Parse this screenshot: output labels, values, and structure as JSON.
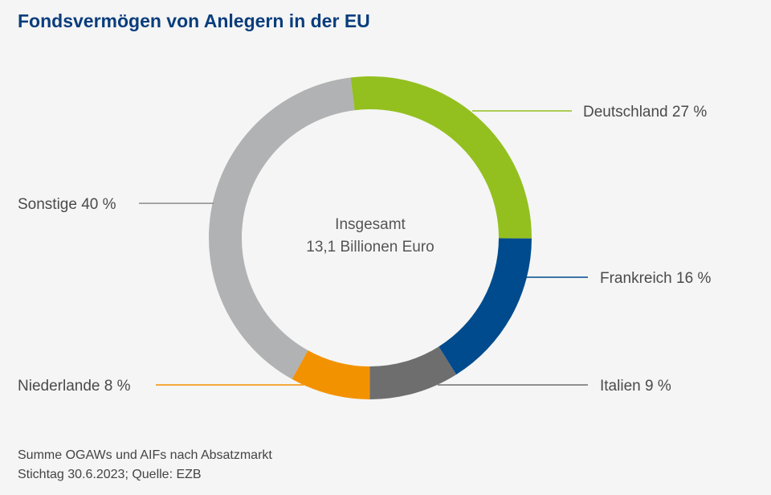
{
  "chart_data": {
    "type": "pie",
    "variant": "donut",
    "title": "Fondsvermögen von Anlegern in der EU",
    "center_label": [
      "Insgesamt",
      "13,1 Billionen Euro"
    ],
    "unit": "%",
    "slices": [
      {
        "name": "Deutschland",
        "value": 27,
        "label": "Deutschland 27 %",
        "color": "#93c01f"
      },
      {
        "name": "Frankreich",
        "value": 16,
        "label": "Frankreich 16 %",
        "color": "#004b8d"
      },
      {
        "name": "Italien",
        "value": 9,
        "label": "Italien 9 %",
        "color": "#6e6e6e"
      },
      {
        "name": "Niederlande",
        "value": 8,
        "label": "Niederlande 8 %",
        "color": "#f39200"
      },
      {
        "name": "Sonstige",
        "value": 40,
        "label": "Sonstige 40 %",
        "color": "#b1b2b4"
      }
    ],
    "notes": [
      "Summe OGAWs und AIFs nach Absatzmarkt",
      "Stichtag 30.6.2023; Quelle: EZB"
    ]
  }
}
